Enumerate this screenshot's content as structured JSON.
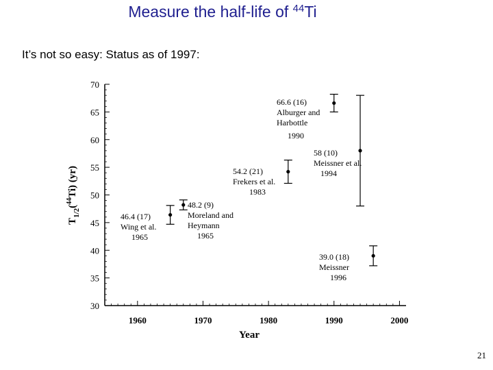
{
  "slide": {
    "title_prefix": "Measure the half-life of ",
    "title_mass": "44",
    "title_element": "Ti",
    "subtitle": "It’s not so easy: Status as of 1997:",
    "page_number": "21"
  },
  "colors": {
    "title": "#1f1f8f",
    "text": "#000000",
    "background": "#ffffff"
  },
  "chart_data": {
    "type": "scatter",
    "title": "",
    "xlabel": "Year",
    "ylabel": "T1/2(44Ti) (yr)",
    "ylabel_parts": {
      "T": "T",
      "sub": "1/2",
      "open": "(",
      "mass": "44",
      "rest": "Ti) (yr)"
    },
    "xlim": [
      1955,
      2001
    ],
    "ylim": [
      30,
      70
    ],
    "x_ticks": [
      1960,
      1970,
      1980,
      1990,
      2000
    ],
    "x_tick_labels": [
      "1960",
      "1970",
      "1980",
      "1990",
      "2000"
    ],
    "y_ticks": [
      30,
      35,
      40,
      45,
      50,
      55,
      60,
      65,
      70
    ],
    "y_tick_labels": [
      "30",
      "35",
      "40",
      "45",
      "50",
      "55",
      "60",
      "65",
      "70"
    ],
    "grid": false,
    "points": [
      {
        "x": 1965,
        "y": 46.4,
        "err": 1.7,
        "labels": [
          "46.4 (17)",
          "Wing et al.",
          "1965"
        ]
      },
      {
        "x": 1967,
        "y": 48.2,
        "err": 0.9,
        "labels": [
          "48.2 (9)",
          "Moreland and",
          "Heymann",
          "1965"
        ]
      },
      {
        "x": 1983,
        "y": 54.2,
        "err": 2.1,
        "labels": [
          "54.2 (21)",
          "Frekers et al.",
          "1983"
        ]
      },
      {
        "x": 1990,
        "y": 66.6,
        "err": 1.6,
        "labels": [
          "66.6 (16)",
          "Alburger and",
          "Harbottle",
          "1990"
        ]
      },
      {
        "x": 1994,
        "y": 58.0,
        "err": 10.0,
        "labels": [
          "58 (10)",
          "Meissner et al.",
          "1994"
        ]
      },
      {
        "x": 1996,
        "y": 39.0,
        "err": 1.8,
        "labels": [
          "39.0 (18)",
          "Meissner",
          "1996"
        ]
      }
    ]
  }
}
